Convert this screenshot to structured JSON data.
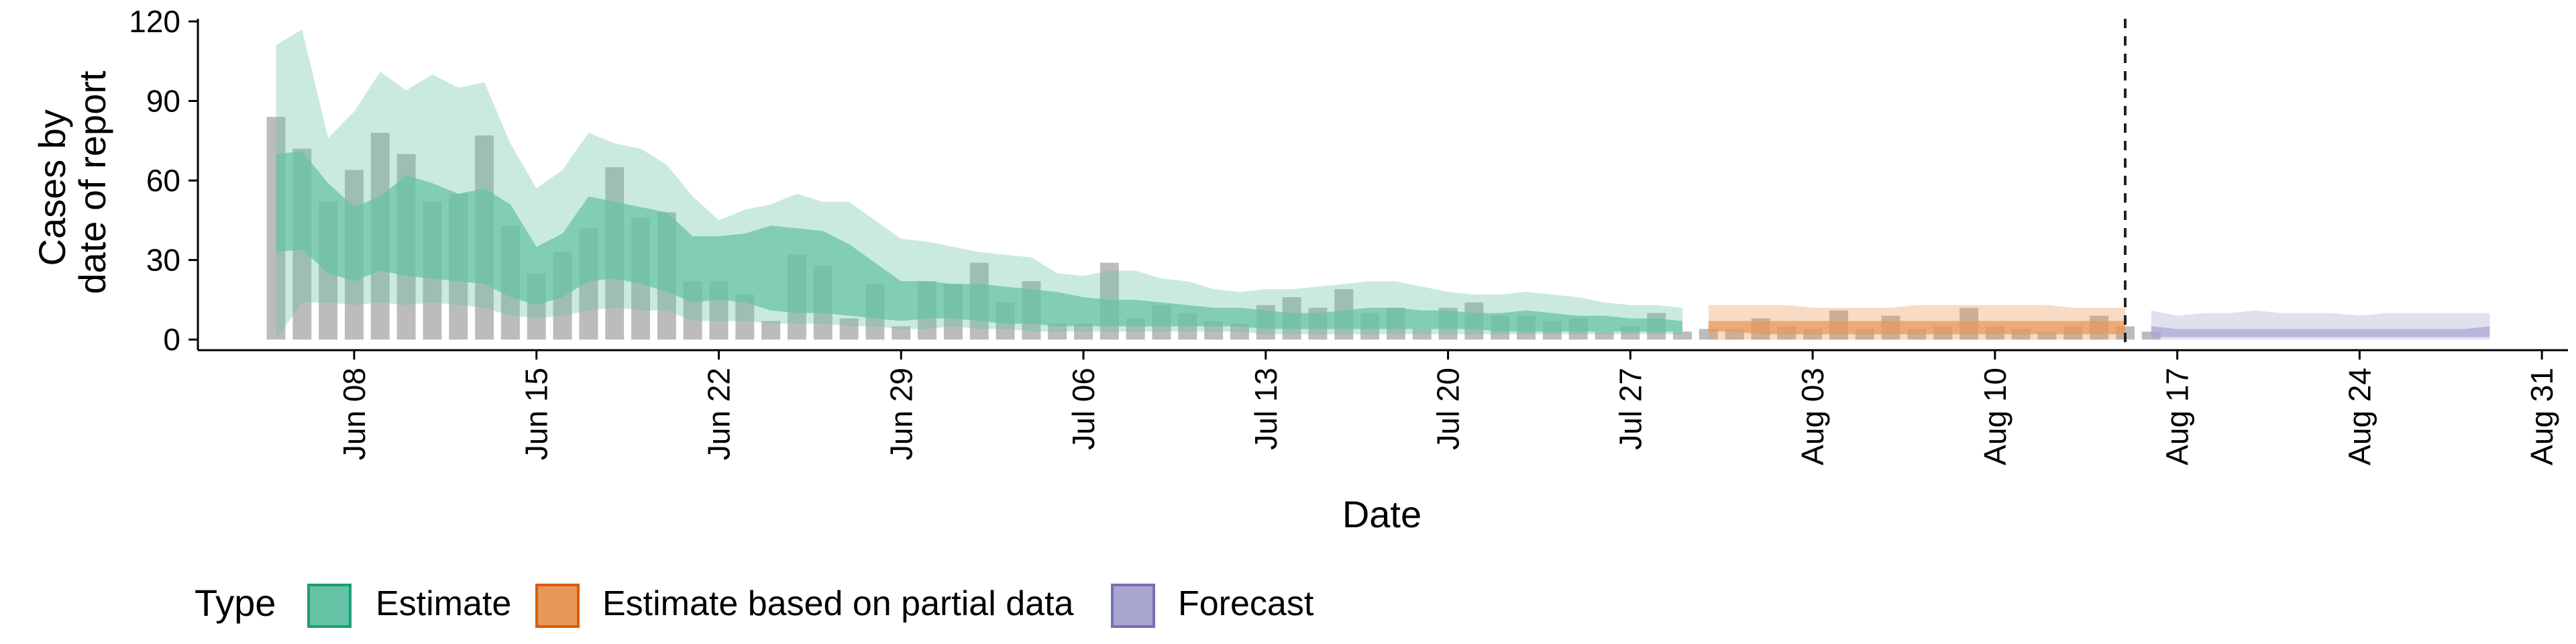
{
  "chart_data": {
    "type": "area",
    "xlabel": "Date",
    "ylabel_lines": [
      "Cases by",
      "date of report"
    ],
    "x_range": [
      "2020-06-02",
      "2020-09-01"
    ],
    "ylim": [
      -4,
      121
    ],
    "x_ticks": [
      {
        "date": "2020-06-08",
        "label": "Jun 08"
      },
      {
        "date": "2020-06-15",
        "label": "Jun 15"
      },
      {
        "date": "2020-06-22",
        "label": "Jun 22"
      },
      {
        "date": "2020-06-29",
        "label": "Jun 29"
      },
      {
        "date": "2020-07-06",
        "label": "Jul 06"
      },
      {
        "date": "2020-07-13",
        "label": "Jul 13"
      },
      {
        "date": "2020-07-20",
        "label": "Jul 20"
      },
      {
        "date": "2020-07-27",
        "label": "Jul 27"
      },
      {
        "date": "2020-08-03",
        "label": "Aug 03"
      },
      {
        "date": "2020-08-10",
        "label": "Aug 10"
      },
      {
        "date": "2020-08-17",
        "label": "Aug 17"
      },
      {
        "date": "2020-08-24",
        "label": "Aug 24"
      },
      {
        "date": "2020-08-31",
        "label": "Aug 31"
      }
    ],
    "y_ticks": [
      0,
      30,
      60,
      90,
      120
    ],
    "vline_date": "2020-08-15",
    "grid": false,
    "legend": {
      "position": "bottom",
      "title": "Type",
      "items": [
        {
          "label": "Estimate",
          "fill": "#66c2a5",
          "stroke": "#1b9e77"
        },
        {
          "label": "Estimate based on partial data",
          "fill": "#e8975a",
          "stroke": "#d95f02"
        },
        {
          "label": "Forecast",
          "fill": "#a8a5d0",
          "stroke": "#7570b3"
        }
      ]
    },
    "bars": {
      "color": "#a6a6a6",
      "start_date": "2020-06-05",
      "values": [
        84,
        72,
        52,
        64,
        78,
        70,
        52,
        55,
        77,
        43,
        25,
        33,
        42,
        65,
        46,
        48,
        22,
        22,
        17,
        7,
        32,
        28,
        8,
        21,
        5,
        22,
        21,
        29,
        14,
        22,
        6,
        6,
        29,
        8,
        13,
        10,
        7,
        6,
        13,
        16,
        12,
        19,
        10,
        12,
        4,
        12,
        14,
        9,
        9,
        7,
        8,
        3,
        5,
        10,
        3,
        4,
        4,
        8,
        5,
        4,
        11,
        4,
        9,
        4,
        5,
        12,
        5,
        4,
        3,
        5,
        9,
        5,
        3
      ]
    },
    "series": [
      {
        "name": "Estimate",
        "start_date": "2020-06-05",
        "fill": "#66c2a5",
        "inner": {
          "lower": [
            33,
            34,
            25,
            22,
            26,
            24,
            23,
            22,
            21,
            16,
            13,
            16,
            22,
            23,
            21,
            18,
            14,
            15,
            14,
            11,
            10,
            10,
            9,
            8,
            7,
            8,
            8,
            7,
            6,
            6,
            5,
            5,
            5,
            5,
            5,
            5,
            5,
            5,
            4,
            4,
            4,
            4,
            4,
            4,
            4,
            4,
            4,
            3,
            3,
            3,
            3,
            3,
            3,
            3,
            3
          ],
          "upper": [
            70,
            71,
            59,
            50,
            54,
            62,
            59,
            55,
            57,
            51,
            35,
            40,
            54,
            52,
            50,
            48,
            39,
            39,
            40,
            43,
            42,
            41,
            36,
            29,
            22,
            22,
            21,
            21,
            20,
            19,
            18,
            16,
            15,
            15,
            14,
            13,
            12,
            12,
            11,
            10,
            10,
            11,
            12,
            12,
            11,
            11,
            10,
            10,
            11,
            10,
            9,
            9,
            8,
            8,
            7
          ]
        },
        "outer": {
          "lower": [
            0,
            14,
            14,
            13,
            14,
            13,
            14,
            13,
            12,
            9,
            8,
            9,
            11,
            12,
            11,
            11,
            7,
            7,
            7,
            6,
            6,
            6,
            5,
            5,
            4,
            4,
            5,
            4,
            4,
            3,
            3,
            3,
            3,
            3,
            3,
            3,
            3,
            3,
            2,
            2,
            2,
            2,
            2,
            2,
            2,
            2,
            2,
            2,
            2,
            2,
            2,
            2,
            2,
            2,
            2
          ],
          "upper": [
            111,
            117,
            76,
            86,
            101,
            94,
            100,
            95,
            97,
            74,
            57,
            64,
            78,
            74,
            72,
            66,
            54,
            45,
            49,
            51,
            55,
            52,
            52,
            45,
            38,
            37,
            35,
            33,
            32,
            31,
            25,
            24,
            26,
            26,
            23,
            22,
            19,
            18,
            19,
            19,
            20,
            21,
            22,
            22,
            20,
            18,
            17,
            17,
            18,
            17,
            16,
            14,
            13,
            13,
            12
          ]
        }
      },
      {
        "name": "Estimate based on partial data",
        "start_date": "2020-07-30",
        "fill": "#e8975a",
        "inner": {
          "lower": [
            3,
            3,
            2,
            2,
            2,
            2,
            2,
            2,
            2,
            2,
            2,
            2,
            2,
            2,
            2,
            2,
            2
          ],
          "upper": [
            7,
            7,
            7,
            7,
            7,
            7,
            7,
            7,
            7,
            7,
            7,
            7,
            7,
            7,
            7,
            7,
            7
          ]
        },
        "outer": {
          "lower": [
            0,
            0,
            0,
            0,
            0,
            0,
            0,
            0,
            0,
            0,
            0,
            0,
            0,
            0,
            0,
            0,
            0
          ],
          "upper": [
            13,
            13,
            13,
            13,
            12,
            12,
            12,
            12,
            13,
            13,
            13,
            13,
            13,
            13,
            12,
            12,
            12
          ]
        }
      },
      {
        "name": "Forecast",
        "start_date": "2020-08-16",
        "fill": "#a8a5d0",
        "inner": {
          "lower": [
            1,
            1,
            1,
            1,
            1,
            1,
            1,
            1,
            1,
            1,
            1,
            1,
            1,
            1
          ],
          "upper": [
            5,
            4,
            4,
            4,
            4,
            4,
            4,
            4,
            4,
            4,
            4,
            4,
            4,
            5
          ]
        },
        "outer": {
          "lower": [
            0,
            0,
            0,
            0,
            0,
            0,
            0,
            0,
            0,
            0,
            0,
            0,
            0,
            0
          ],
          "upper": [
            11,
            9,
            10,
            10,
            11,
            10,
            10,
            10,
            9,
            10,
            10,
            10,
            10,
            10
          ]
        }
      }
    ]
  }
}
